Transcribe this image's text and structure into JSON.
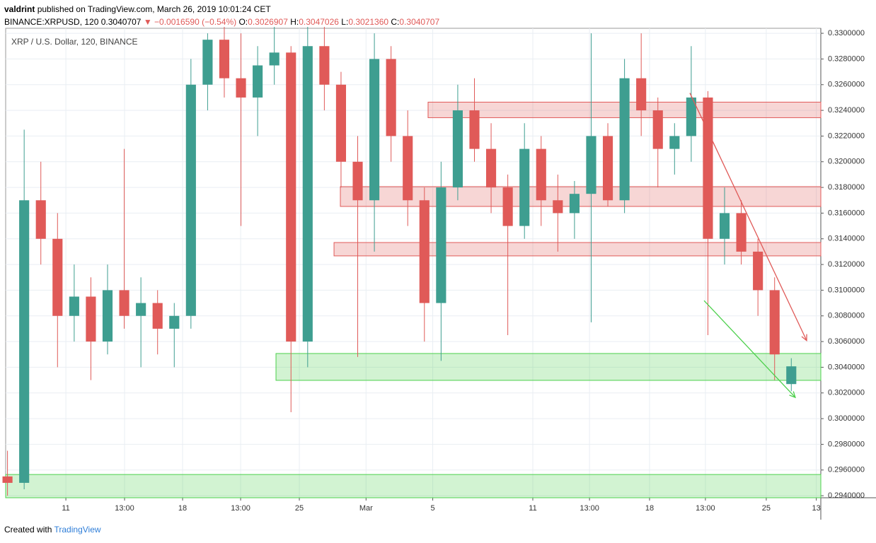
{
  "header": {
    "author": "valdrint",
    "published": "published on TradingView.com, March 26, 2019 10:01:24 CET",
    "symbol": "BINANCE:XRPUSD, 120",
    "last": "0.3040707",
    "change": "▼ −0.0016590 (−0.54%)",
    "o_label": "O:",
    "o": "0.3026907",
    "h_label": "H:",
    "h": "0.3047026",
    "l_label": "L:",
    "l": "0.3021360",
    "c_label": "C:",
    "c": "0.3040707"
  },
  "footer": {
    "created": "Created with",
    "brand": "TradingView"
  },
  "chart_data": {
    "type": "candlestick",
    "title": "XRP / U.S. Dollar, 120, BINANCE",
    "up_color": "#3e9e90",
    "down_color": "#e05a58",
    "grid": true,
    "x": [
      7.5,
      8.5,
      9.5,
      10.5,
      11.5,
      12.5,
      13.5,
      14.5,
      15.5,
      16.5,
      17.5,
      18.5,
      19.5,
      20.5,
      21.5,
      22.5,
      23.5,
      24.5,
      25.5,
      26.5,
      27.5,
      28.5,
      29.5,
      30.5,
      31.5,
      32.5,
      33.5,
      34.5,
      35.5,
      36.5,
      37.5,
      38.5,
      39.5,
      40.5,
      41.5,
      42.5,
      43.5,
      44.5,
      45.5,
      46.5,
      47.5,
      48.5,
      49.5,
      50.5,
      51.5,
      52.5,
      53.5,
      54.5
    ],
    "open": [
      0.2955,
      0.295,
      0.317,
      0.314,
      0.308,
      0.3095,
      0.306,
      0.31,
      0.308,
      0.309,
      0.307,
      0.308,
      0.326,
      0.3295,
      0.3265,
      0.325,
      0.3275,
      0.3285,
      0.306,
      0.329,
      0.326,
      0.32,
      0.317,
      0.328,
      0.322,
      0.317,
      0.309,
      0.318,
      0.324,
      0.321,
      0.318,
      0.315,
      0.321,
      0.317,
      0.316,
      0.3175,
      0.322,
      0.317,
      0.3265,
      0.324,
      0.321,
      0.322,
      0.325,
      0.314,
      0.316,
      0.313,
      0.31,
      0.3026907
    ],
    "high": [
      0.2975,
      0.3225,
      0.32,
      0.316,
      0.312,
      0.311,
      0.312,
      0.321,
      0.311,
      0.31,
      0.309,
      0.328,
      0.33,
      0.3305,
      0.33,
      0.329,
      0.3305,
      0.329,
      0.3305,
      0.3305,
      0.327,
      0.322,
      0.33,
      0.329,
      0.324,
      0.318,
      0.32,
      0.326,
      0.3265,
      0.323,
      0.319,
      0.323,
      0.322,
      0.319,
      0.3185,
      0.33,
      0.323,
      0.328,
      0.33,
      0.325,
      0.323,
      0.329,
      0.3255,
      0.318,
      0.317,
      0.314,
      0.311,
      0.3047026
    ],
    "low": [
      0.294,
      0.2945,
      0.312,
      0.304,
      0.306,
      0.303,
      0.305,
      0.307,
      0.304,
      0.305,
      0.304,
      0.307,
      0.324,
      0.325,
      0.315,
      0.322,
      0.326,
      0.3005,
      0.304,
      0.324,
      0.318,
      0.3048,
      0.313,
      0.32,
      0.315,
      0.306,
      0.3045,
      0.317,
      0.32,
      0.316,
      0.3065,
      0.314,
      0.315,
      0.313,
      0.314,
      0.3075,
      0.3165,
      0.316,
      0.322,
      0.318,
      0.319,
      0.32,
      0.3065,
      0.312,
      0.312,
      0.308,
      0.303,
      0.302136
    ],
    "close": [
      0.295,
      0.317,
      0.314,
      0.308,
      0.3095,
      0.306,
      0.31,
      0.308,
      0.309,
      0.307,
      0.308,
      0.326,
      0.3295,
      0.3265,
      0.325,
      0.3275,
      0.3285,
      0.306,
      0.329,
      0.326,
      0.32,
      0.317,
      0.328,
      0.322,
      0.317,
      0.309,
      0.318,
      0.324,
      0.321,
      0.318,
      0.315,
      0.321,
      0.317,
      0.316,
      0.3175,
      0.322,
      0.317,
      0.3265,
      0.324,
      0.321,
      0.322,
      0.325,
      0.314,
      0.316,
      0.313,
      0.31,
      0.305,
      0.3040707
    ],
    "zones": [
      {
        "x_start": 32.72,
        "y": [
          0.32343,
          0.32464
        ],
        "color": "#e05a58"
      },
      {
        "x_start": 27.46,
        "y": [
          0.31652,
          0.31806
        ],
        "color": "#e05a58"
      },
      {
        "x_start": 27.08,
        "y": [
          0.31267,
          0.31371
        ],
        "color": "#e05a58"
      },
      {
        "x_start": 23.6,
        "y": [
          0.30298,
          0.30507
        ],
        "color": "#4cd04c"
      },
      {
        "x_start": 7.39,
        "y": [
          0.29384,
          0.29565
        ],
        "color": "#4cd04c"
      }
    ],
    "arrows": [
      {
        "x": [
          48.42,
          55.42
        ],
        "y": [
          0.32535,
          0.30608
        ],
        "color": "#e05a58"
      },
      {
        "x": [
          49.27,
          54.74
        ],
        "y": [
          0.30919,
          0.30165
        ],
        "color": "#4cd04c"
      }
    ],
    "xlim": [
      7.39,
      56.27
    ],
    "xticks": [
      {
        "value": 11,
        "label": "11"
      },
      {
        "value": 14.52,
        "label": "13:00"
      },
      {
        "value": 18,
        "label": "18"
      },
      {
        "value": 21.48,
        "label": "13:00"
      },
      {
        "value": 25,
        "label": "25"
      },
      {
        "value": 29,
        "label": "Mar"
      },
      {
        "value": 33,
        "label": "5"
      },
      {
        "value": 39,
        "label": "11"
      },
      {
        "value": 42.4,
        "label": "13:00"
      },
      {
        "value": 46,
        "label": "18"
      },
      {
        "value": 49.35,
        "label": "13:00"
      },
      {
        "value": 53,
        "label": "25"
      },
      {
        "value": 56,
        "label": "13"
      }
    ],
    "ylim": [
      0.29384,
      0.33039
    ],
    "yticks": [
      {
        "value": 0.294,
        "label": "0.2940000"
      },
      {
        "value": 0.296,
        "label": "0.2960000"
      },
      {
        "value": 0.298,
        "label": "0.2980000"
      },
      {
        "value": 0.3,
        "label": "0.3000000"
      },
      {
        "value": 0.302,
        "label": "0.3020000"
      },
      {
        "value": 0.304,
        "label": "0.3040000"
      },
      {
        "value": 0.306,
        "label": "0.3060000"
      },
      {
        "value": 0.308,
        "label": "0.3080000"
      },
      {
        "value": 0.31,
        "label": "0.3100000"
      },
      {
        "value": 0.312,
        "label": "0.3120000"
      },
      {
        "value": 0.314,
        "label": "0.3140000"
      },
      {
        "value": 0.316,
        "label": "0.3160000"
      },
      {
        "value": 0.318,
        "label": "0.3180000"
      },
      {
        "value": 0.32,
        "label": "0.3200000"
      },
      {
        "value": 0.322,
        "label": "0.3220000"
      },
      {
        "value": 0.324,
        "label": "0.3240000"
      },
      {
        "value": 0.326,
        "label": "0.3260000"
      },
      {
        "value": 0.328,
        "label": "0.3280000"
      },
      {
        "value": 0.33,
        "label": "0.3300000"
      }
    ]
  }
}
